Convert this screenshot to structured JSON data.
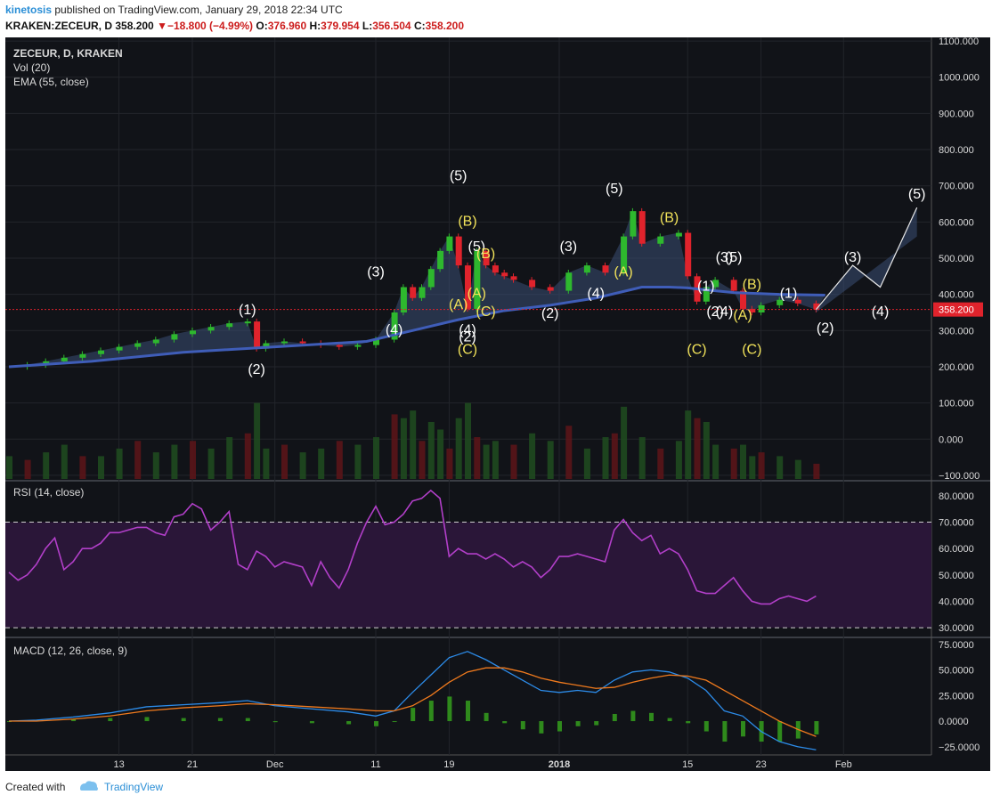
{
  "header": {
    "user": "kinetosis",
    "published_text": "published on TradingView.com, January 29, 2018 22:34 UTC",
    "symbol": "KRAKEN:ZECEUR, D",
    "last": "358.200",
    "change": "−18.800 (−4.99%)",
    "open_label": "O:",
    "open": "376.960",
    "high_label": "H:",
    "high": "379.954",
    "low_label": "L:",
    "low": "356.504",
    "close_label": "C:",
    "close": "358.200"
  },
  "legend": {
    "title": "ZECEUR, D, KRAKEN",
    "vol": "Vol (20)",
    "ema": "EMA (55, close)",
    "rsi": "RSI (14, close)",
    "macd": "MACD (12, 26, close, 9)"
  },
  "footer": {
    "created_with": "Created with",
    "brand": "TradingView"
  },
  "colors": {
    "background": "#111318",
    "up": "#2eb82e",
    "down": "#e0232c",
    "ema": "#3f5db8",
    "rsi": "#b23fc9",
    "macd": "#2c8be8",
    "signal": "#f07a1d",
    "histogram": "#2f8a1c",
    "pattern_fill": "#3a4e74",
    "price_line": "#e0232c"
  },
  "chart_data": [
    {
      "type": "line",
      "panel": "price",
      "title": "ZECEUR, D, KRAKEN",
      "y_ticks": [
        "1100.000",
        "1000.000",
        "900.000",
        "800.000",
        "700.000",
        "600.000",
        "500.000",
        "400.000",
        "300.000",
        "200.000",
        "100.000",
        "0.000",
        "−100.000"
      ],
      "ylim": [
        -110,
        1110
      ],
      "x_ticks": [
        {
          "label": "13",
          "day": 13
        },
        {
          "label": "21",
          "day": 21
        },
        {
          "label": "Dec",
          "day": 30
        },
        {
          "label": "11",
          "day": 41
        },
        {
          "label": "19",
          "day": 49
        },
        {
          "label": "2018",
          "day": 61
        },
        {
          "label": "15",
          "day": 75
        },
        {
          "label": "23",
          "day": 83
        },
        {
          "label": "Feb",
          "day": 92
        }
      ],
      "close_series": {
        "x_days": [
          1,
          3,
          5,
          7,
          9,
          11,
          13,
          15,
          17,
          19,
          21,
          23,
          25,
          27,
          28,
          29,
          31,
          33,
          35,
          37,
          39,
          41,
          43,
          44,
          45,
          46,
          47,
          48,
          49,
          50,
          51,
          52,
          53,
          54,
          55,
          56,
          58,
          60,
          62,
          64,
          66,
          68,
          69,
          70,
          72,
          74,
          75,
          76,
          77,
          78,
          80,
          81,
          82,
          83,
          85,
          87,
          89
        ],
        "values": [
          200,
          205,
          215,
          225,
          235,
          245,
          255,
          265,
          275,
          290,
          300,
          310,
          320,
          325,
          250,
          265,
          270,
          265,
          260,
          255,
          260,
          275,
          350,
          420,
          390,
          420,
          470,
          520,
          560,
          480,
          360,
          520,
          480,
          460,
          450,
          440,
          420,
          410,
          460,
          480,
          460,
          560,
          630,
          540,
          560,
          570,
          450,
          380,
          420,
          440,
          410,
          360,
          350,
          370,
          385,
          375,
          358
        ]
      },
      "ema_55": {
        "x_days": [
          1,
          10,
          20,
          30,
          40,
          45,
          50,
          55,
          60,
          65,
          70,
          73,
          75,
          78,
          80,
          85,
          90
        ],
        "values": [
          200,
          215,
          240,
          255,
          270,
          300,
          330,
          355,
          370,
          390,
          420,
          420,
          418,
          410,
          405,
          400,
          398
        ]
      },
      "last_price": 358.2,
      "wave_labels": [
        {
          "text": "(1)",
          "day": 27,
          "price": 345,
          "color": "white"
        },
        {
          "text": "(2)",
          "day": 28,
          "price": 180,
          "color": "white"
        },
        {
          "text": "(3)",
          "day": 41,
          "price": 450,
          "color": "white"
        },
        {
          "text": "(4)",
          "day": 43,
          "price": 290,
          "color": "white"
        },
        {
          "text": "(5)",
          "day": 50,
          "price": 715,
          "color": "white"
        },
        {
          "text": "(B)",
          "day": 51,
          "price": 590,
          "color": "yellow"
        },
        {
          "text": "(A)",
          "day": 50,
          "price": 360,
          "color": "yellow"
        },
        {
          "text": "(4)",
          "day": 51,
          "price": 290,
          "color": "white"
        },
        {
          "text": "(2)",
          "day": 51,
          "price": 270,
          "color": "white"
        },
        {
          "text": "(C)",
          "day": 51,
          "price": 235,
          "color": "yellow"
        },
        {
          "text": "(5)",
          "day": 52,
          "price": 520,
          "color": "white"
        },
        {
          "text": "(B)",
          "day": 53,
          "price": 500,
          "color": "yellow"
        },
        {
          "text": "(A)",
          "day": 52,
          "price": 390,
          "color": "yellow"
        },
        {
          "text": "(C)",
          "day": 53,
          "price": 340,
          "color": "yellow"
        },
        {
          "text": "(2)",
          "day": 60,
          "price": 335,
          "color": "white"
        },
        {
          "text": "(3)",
          "day": 62,
          "price": 520,
          "color": "white"
        },
        {
          "text": "(4)",
          "day": 65,
          "price": 390,
          "color": "white"
        },
        {
          "text": "(5)",
          "day": 67,
          "price": 680,
          "color": "white"
        },
        {
          "text": "(A)",
          "day": 68,
          "price": 450,
          "color": "yellow"
        },
        {
          "text": "(B)",
          "day": 73,
          "price": 600,
          "color": "yellow"
        },
        {
          "text": "(C)",
          "day": 76,
          "price": 235,
          "color": "yellow"
        },
        {
          "text": "(1)",
          "day": 77,
          "price": 410,
          "color": "white"
        },
        {
          "text": "(2)",
          "day": 78,
          "price": 340,
          "color": "white"
        },
        {
          "text": "(3)",
          "day": 79,
          "price": 490,
          "color": "white"
        },
        {
          "text": "(4)",
          "day": 79,
          "price": 340,
          "color": "white"
        },
        {
          "text": "(5)",
          "day": 80,
          "price": 490,
          "color": "white"
        },
        {
          "text": "(B)",
          "day": 82,
          "price": 415,
          "color": "yellow"
        },
        {
          "text": "(A)",
          "day": 81,
          "price": 330,
          "color": "yellow"
        },
        {
          "text": "(C)",
          "day": 82,
          "price": 235,
          "color": "yellow"
        },
        {
          "text": "(1)",
          "day": 86,
          "price": 390,
          "color": "white"
        },
        {
          "text": "(2)",
          "day": 90,
          "price": 295,
          "color": "white"
        },
        {
          "text": "(3)",
          "day": 93,
          "price": 490,
          "color": "white"
        },
        {
          "text": "(4)",
          "day": 96,
          "price": 340,
          "color": "white"
        },
        {
          "text": "(5)",
          "day": 100,
          "price": 665,
          "color": "white"
        }
      ]
    },
    {
      "type": "bar",
      "panel": "volume",
      "title": "Vol (20)",
      "x_days": [
        1,
        3,
        5,
        7,
        9,
        11,
        13,
        15,
        17,
        19,
        21,
        23,
        25,
        27,
        28,
        29,
        31,
        33,
        35,
        37,
        39,
        41,
        43,
        44,
        45,
        46,
        47,
        48,
        49,
        50,
        51,
        52,
        53,
        54,
        56,
        58,
        60,
        62,
        64,
        66,
        67,
        68,
        70,
        72,
        74,
        75,
        76,
        77,
        78,
        80,
        81,
        82,
        83,
        85,
        87,
        89
      ],
      "values": [
        0.3,
        0.25,
        0.35,
        0.45,
        0.3,
        0.3,
        0.4,
        0.5,
        0.35,
        0.45,
        0.5,
        0.4,
        0.55,
        0.6,
        1.0,
        0.4,
        0.45,
        0.35,
        0.4,
        0.5,
        0.45,
        0.55,
        0.85,
        0.8,
        0.9,
        0.5,
        0.75,
        0.65,
        0.4,
        0.8,
        1.0,
        0.55,
        0.45,
        0.5,
        0.45,
        0.6,
        0.5,
        0.7,
        0.4,
        0.55,
        0.6,
        0.95,
        0.55,
        0.4,
        0.5,
        0.9,
        0.8,
        0.75,
        0.45,
        0.4,
        0.45,
        0.3,
        0.35,
        0.3,
        0.25,
        0.2
      ]
    },
    {
      "type": "line",
      "panel": "rsi",
      "title": "RSI (14, close)",
      "y_ticks": [
        "80.0000",
        "70.0000",
        "60.0000",
        "50.0000",
        "40.0000",
        "30.0000"
      ],
      "ylim": [
        27,
        85
      ],
      "bands": [
        70,
        30
      ],
      "x_days": [
        1,
        2,
        3,
        4,
        5,
        6,
        7,
        8,
        9,
        10,
        11,
        12,
        13,
        14,
        15,
        16,
        17,
        18,
        19,
        20,
        21,
        22,
        23,
        24,
        25,
        26,
        27,
        28,
        29,
        30,
        31,
        32,
        33,
        34,
        35,
        36,
        37,
        38,
        39,
        40,
        41,
        42,
        43,
        44,
        45,
        46,
        47,
        48,
        49,
        50,
        51,
        52,
        53,
        54,
        55,
        56,
        57,
        58,
        59,
        60,
        61,
        62,
        63,
        64,
        65,
        66,
        67,
        68,
        69,
        70,
        71,
        72,
        73,
        74,
        75,
        76,
        77,
        78,
        79,
        80,
        81,
        82,
        83,
        84,
        85,
        86,
        87,
        88,
        89
      ],
      "values": [
        51,
        48,
        50,
        54,
        60,
        64,
        52,
        55,
        60,
        60,
        62,
        66,
        66,
        67,
        68,
        68,
        66,
        65,
        72,
        73,
        77,
        75,
        67,
        70,
        74,
        54,
        52,
        59,
        57,
        53,
        55,
        54,
        53,
        46,
        55,
        49,
        45,
        52,
        62,
        70,
        76,
        69,
        70,
        73,
        78,
        79,
        82,
        79,
        57,
        60,
        58,
        58,
        56,
        58,
        56,
        53,
        55,
        53,
        49,
        52,
        57,
        57,
        58,
        57,
        56,
        55,
        67,
        71,
        66,
        63,
        65,
        58,
        60,
        58,
        52,
        44,
        43,
        43,
        46,
        49,
        44,
        40,
        39,
        39,
        41,
        42,
        41,
        40,
        42
      ]
    },
    {
      "type": "line",
      "panel": "macd",
      "title": "MACD (12, 26, close, 9)",
      "y_ticks": [
        "75.0000",
        "50.0000",
        "25.0000",
        "0.0000",
        "−25.0000"
      ],
      "ylim": [
        -33,
        80
      ],
      "x_days": [
        1,
        4,
        8,
        12,
        16,
        20,
        24,
        27,
        30,
        34,
        38,
        41,
        43,
        45,
        47,
        49,
        51,
        53,
        55,
        57,
        59,
        61,
        63,
        65,
        67,
        69,
        71,
        73,
        75,
        77,
        79,
        81,
        83,
        85,
        87,
        89
      ],
      "macd": [
        0,
        1,
        4,
        8,
        14,
        16,
        18,
        20,
        15,
        12,
        9,
        5,
        10,
        28,
        45,
        62,
        68,
        60,
        50,
        40,
        30,
        28,
        30,
        28,
        40,
        48,
        50,
        48,
        42,
        30,
        10,
        5,
        -10,
        -20,
        -25,
        -28
      ],
      "signal": [
        0,
        0,
        2,
        5,
        10,
        13,
        15,
        17,
        16,
        14,
        12,
        10,
        10,
        15,
        25,
        38,
        48,
        52,
        52,
        48,
        42,
        38,
        35,
        32,
        33,
        38,
        42,
        45,
        44,
        40,
        30,
        20,
        10,
        0,
        -8,
        -15
      ],
      "histogram": [
        0,
        1,
        2,
        3,
        4,
        3,
        3,
        3,
        -1,
        -2,
        -3,
        -5,
        0,
        13,
        20,
        24,
        20,
        8,
        -2,
        -8,
        -12,
        -10,
        -5,
        -4,
        7,
        10,
        8,
        3,
        -2,
        -10,
        -20,
        -15,
        -20,
        -20,
        -17,
        -13
      ]
    }
  ]
}
